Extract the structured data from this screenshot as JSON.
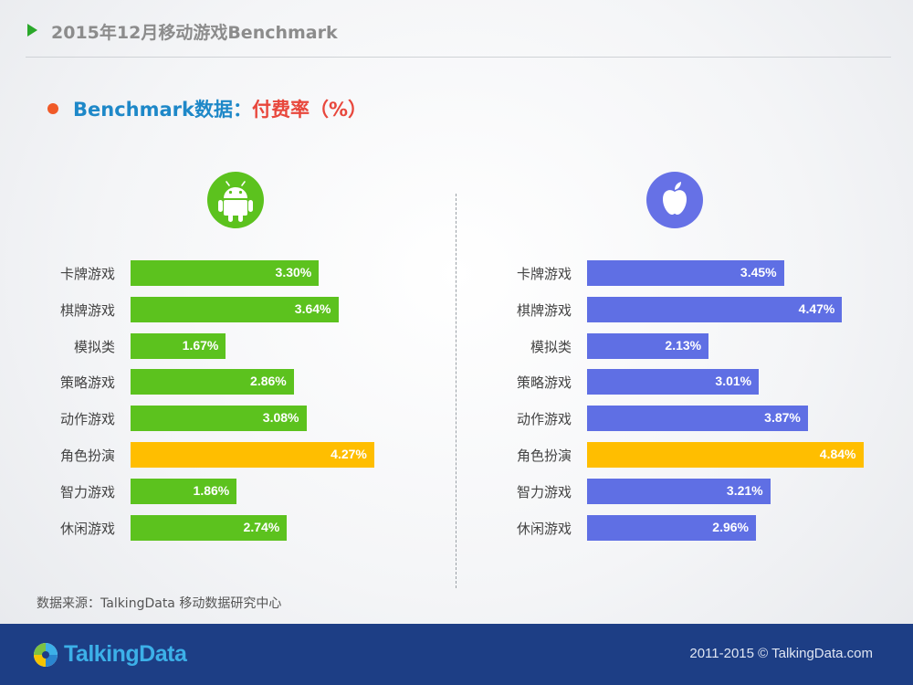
{
  "header": {
    "title": "2015年12月移动游戏Benchmark"
  },
  "subtitle": {
    "part1": "Benchmark数据：",
    "part2": "付费率（%）"
  },
  "colors": {
    "android": "#5cc21e",
    "ios": "#5f6fe4",
    "highlight": "#ffbe00",
    "accent_green": "#2aa82a"
  },
  "icons": {
    "android": "android-icon",
    "apple": "apple-icon"
  },
  "chart_data": [
    {
      "type": "bar",
      "orientation": "horizontal",
      "platform_icon": "android-icon",
      "categories": [
        "卡牌游戏",
        "棋牌游戏",
        "模拟类",
        "策略游戏",
        "动作游戏",
        "角色扮演",
        "智力游戏",
        "休闲游戏"
      ],
      "values": [
        3.3,
        3.64,
        1.67,
        2.86,
        3.08,
        4.27,
        1.86,
        2.74
      ],
      "labels": [
        "3.30%",
        "3.64%",
        "1.67%",
        "2.86%",
        "3.08%",
        "4.27%",
        "1.86%",
        "2.74%"
      ],
      "highlight_index": 5,
      "xlim": [
        0,
        4.84
      ]
    },
    {
      "type": "bar",
      "orientation": "horizontal",
      "platform_icon": "apple-icon",
      "categories": [
        "卡牌游戏",
        "棋牌游戏",
        "模拟类",
        "策略游戏",
        "动作游戏",
        "角色扮演",
        "智力游戏",
        "休闲游戏"
      ],
      "values": [
        3.45,
        4.47,
        2.13,
        3.01,
        3.87,
        4.84,
        3.21,
        2.96
      ],
      "labels": [
        "3.45%",
        "4.47%",
        "2.13%",
        "3.01%",
        "3.87%",
        "4.84%",
        "3.21%",
        "2.96%"
      ],
      "highlight_index": 5,
      "xlim": [
        0,
        4.84
      ]
    }
  ],
  "source": "数据来源：TalkingData 移动数据研究中心",
  "footer": {
    "logo_text": "TalkingData",
    "copyright": "2011-2015 © TalkingData.com"
  }
}
